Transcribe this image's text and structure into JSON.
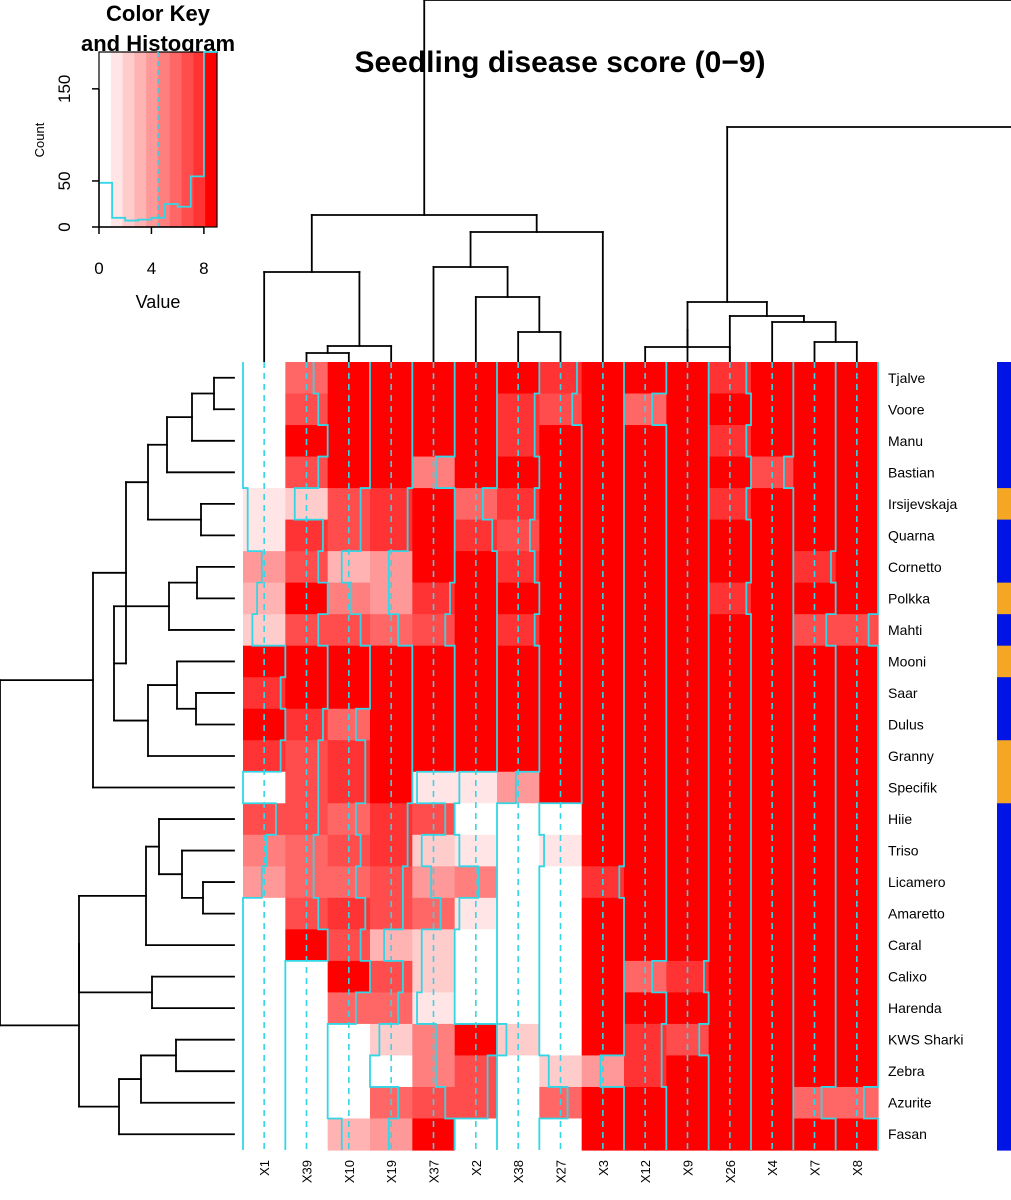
{
  "chart_data": {
    "type": "heatmap",
    "title": "Seedling disease score (0−9)",
    "columns": [
      "X1",
      "X39",
      "X10",
      "X19",
      "X37",
      "X2",
      "X38",
      "X27",
      "X3",
      "X12",
      "X9",
      "X26",
      "X4",
      "X7",
      "X8"
    ],
    "rows": [
      "Tjalve",
      "Voore",
      "Manu",
      "Bastian",
      "Irsijevskaja",
      "Quarna",
      "Cornetto",
      "Polkka",
      "Mahti",
      "Mooni",
      "Saar",
      "Dulus",
      "Granny",
      "Specifik",
      "Hiie",
      "Triso",
      "Licamero",
      "Amaretto",
      "Caral",
      "Calixo",
      "Harenda",
      "KWS Sharki",
      "Zebra",
      "Azurite",
      "Fasan"
    ],
    "values": [
      [
        0,
        6,
        9,
        9,
        9,
        9,
        9,
        8,
        9,
        9,
        9,
        8,
        9,
        9,
        9
      ],
      [
        0,
        7,
        9,
        9,
        9,
        9,
        8,
        7,
        9,
        6,
        9,
        9,
        9,
        9,
        9
      ],
      [
        0,
        9,
        9,
        9,
        9,
        9,
        8,
        9,
        9,
        9,
        9,
        8,
        9,
        9,
        9
      ],
      [
        0,
        7,
        9,
        9,
        5,
        9,
        9,
        9,
        9,
        9,
        9,
        9,
        7,
        9,
        9
      ],
      [
        1,
        2,
        7,
        8,
        9,
        6,
        8,
        9,
        9,
        9,
        9,
        8,
        9,
        9,
        9
      ],
      [
        1,
        8,
        7,
        8,
        9,
        8,
        7,
        9,
        9,
        9,
        9,
        9,
        9,
        9,
        9
      ],
      [
        4,
        7,
        3,
        4,
        9,
        9,
        8,
        9,
        9,
        9,
        9,
        9,
        9,
        8,
        9
      ],
      [
        3,
        9,
        5,
        4,
        8,
        9,
        9,
        9,
        9,
        9,
        9,
        8,
        9,
        9,
        9
      ],
      [
        2,
        7,
        7,
        6,
        7,
        9,
        8,
        9,
        9,
        9,
        9,
        9,
        9,
        7,
        7
      ],
      [
        9,
        9,
        9,
        9,
        9,
        9,
        9,
        9,
        9,
        9,
        9,
        9,
        9,
        9,
        9
      ],
      [
        8,
        9,
        9,
        9,
        9,
        9,
        9,
        9,
        9,
        9,
        9,
        9,
        9,
        9,
        9
      ],
      [
        9,
        8,
        6,
        9,
        9,
        9,
        9,
        9,
        9,
        9,
        9,
        9,
        9,
        9,
        9
      ],
      [
        8,
        7,
        8,
        9,
        9,
        9,
        9,
        9,
        9,
        9,
        9,
        9,
        9,
        9,
        9
      ],
      [
        0,
        7,
        8,
        9,
        1,
        1,
        4,
        9,
        9,
        9,
        9,
        9,
        9,
        9,
        9
      ],
      [
        7,
        7,
        6,
        8,
        7,
        0,
        0,
        0,
        9,
        9,
        9,
        9,
        9,
        9,
        9
      ],
      [
        5,
        6,
        7,
        8,
        2,
        1,
        0,
        1,
        9,
        9,
        9,
        9,
        9,
        9,
        9
      ],
      [
        4,
        6,
        6,
        7,
        4,
        5,
        0,
        0,
        8,
        9,
        9,
        9,
        9,
        9,
        9
      ],
      [
        0,
        7,
        8,
        7,
        6,
        1,
        0,
        0,
        9,
        9,
        9,
        9,
        9,
        9,
        9
      ],
      [
        0,
        9,
        7,
        3,
        2,
        0,
        0,
        0,
        9,
        9,
        9,
        9,
        9,
        9,
        9
      ],
      [
        0,
        0,
        9,
        7,
        2,
        0,
        0,
        0,
        9,
        6,
        8,
        9,
        9,
        9,
        9
      ],
      [
        0,
        0,
        6,
        6,
        1,
        0,
        0,
        0,
        9,
        9,
        9,
        9,
        9,
        9,
        9
      ],
      [
        0,
        0,
        0,
        2,
        5,
        9,
        2,
        0,
        9,
        8,
        7,
        9,
        9,
        9,
        9
      ],
      [
        0,
        0,
        0,
        0,
        5,
        7,
        0,
        2,
        4,
        8,
        9,
        9,
        9,
        9,
        9
      ],
      [
        0,
        0,
        0,
        6,
        7,
        7,
        0,
        6,
        9,
        9,
        9,
        9,
        9,
        6,
        6
      ],
      [
        0,
        0,
        3,
        4,
        9,
        0,
        0,
        0,
        9,
        9,
        9,
        9,
        9,
        9,
        9
      ]
    ],
    "row_side_colors": [
      "blue",
      "blue",
      "blue",
      "blue",
      "orange",
      "blue",
      "blue",
      "orange",
      "blue",
      "orange",
      "blue",
      "blue",
      "orange",
      "orange",
      "blue",
      "blue",
      "blue",
      "blue",
      "blue",
      "blue",
      "blue",
      "blue",
      "blue",
      "blue",
      "blue"
    ],
    "palette": [
      "#FFFFFF",
      "#FFE5E5",
      "#FFCCCC",
      "#FFB3B3",
      "#FF9999",
      "#FF7F7F",
      "#FF6666",
      "#FF4C4C",
      "#FF3333",
      "#FF0000"
    ],
    "trace_color": "#33D6E6",
    "side_colors": {
      "blue": "#0014E6",
      "orange": "#F5A623"
    },
    "color_key": {
      "title_line1": "Color Key",
      "title_line2": "and Histogram",
      "xlabel": "Value",
      "ylabel": "Count",
      "x_ticks": [
        "0",
        "4",
        "8"
      ],
      "x_tick_values": [
        0,
        4,
        8
      ],
      "y_ticks": [
        "0",
        "50",
        "150"
      ],
      "y_tick_values": [
        0,
        50,
        150
      ],
      "x_range": [
        0,
        9
      ],
      "y_range": [
        0,
        190
      ],
      "mean_line": 4.5,
      "histogram_counts": [
        48,
        10,
        7,
        8,
        10,
        25,
        22,
        55,
        190
      ]
    }
  }
}
